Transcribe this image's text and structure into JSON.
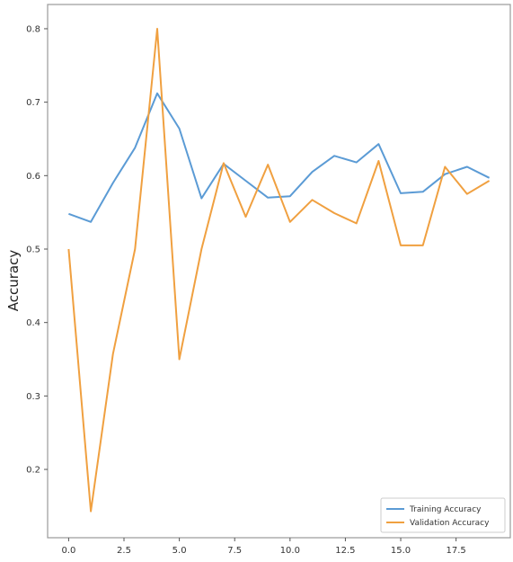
{
  "chart_data": {
    "type": "line",
    "title": "",
    "xlabel": "",
    "ylabel": "Accuracy",
    "x": [
      0,
      1,
      2,
      3,
      4,
      5,
      6,
      7,
      8,
      9,
      10,
      11,
      12,
      13,
      14,
      15,
      16,
      17,
      18,
      19
    ],
    "xlim": [
      -0.95,
      19.95
    ],
    "ylim": [
      0.107,
      0.833
    ],
    "xticks": [
      0.0,
      2.5,
      5.0,
      7.5,
      10.0,
      12.5,
      15.0,
      17.5
    ],
    "xtick_labels": [
      "0.0",
      "2.5",
      "5.0",
      "7.5",
      "10.0",
      "12.5",
      "15.0",
      "17.5"
    ],
    "yticks": [
      0.2,
      0.3,
      0.4,
      0.5,
      0.6,
      0.7,
      0.8
    ],
    "ytick_labels": [
      "0.2",
      "0.3",
      "0.4",
      "0.5",
      "0.6",
      "0.7",
      "0.8"
    ],
    "grid": false,
    "legend_position": "lower-right",
    "series": [
      {
        "name": "Training Accuracy",
        "color": "#5b9bd5",
        "values": [
          0.548,
          0.537,
          0.59,
          0.638,
          0.712,
          0.664,
          0.569,
          0.616,
          0.593,
          0.57,
          0.572,
          0.605,
          0.627,
          0.618,
          0.643,
          0.576,
          0.578,
          0.602,
          0.612,
          0.597
        ]
      },
      {
        "name": "Validation Accuracy",
        "color": "#f0a040",
        "values": [
          0.5,
          0.143,
          0.357,
          0.5,
          0.8,
          0.35,
          0.5,
          0.617,
          0.544,
          0.615,
          0.537,
          0.567,
          0.549,
          0.535,
          0.62,
          0.505,
          0.505,
          0.612,
          0.575,
          0.593
        ]
      }
    ]
  }
}
